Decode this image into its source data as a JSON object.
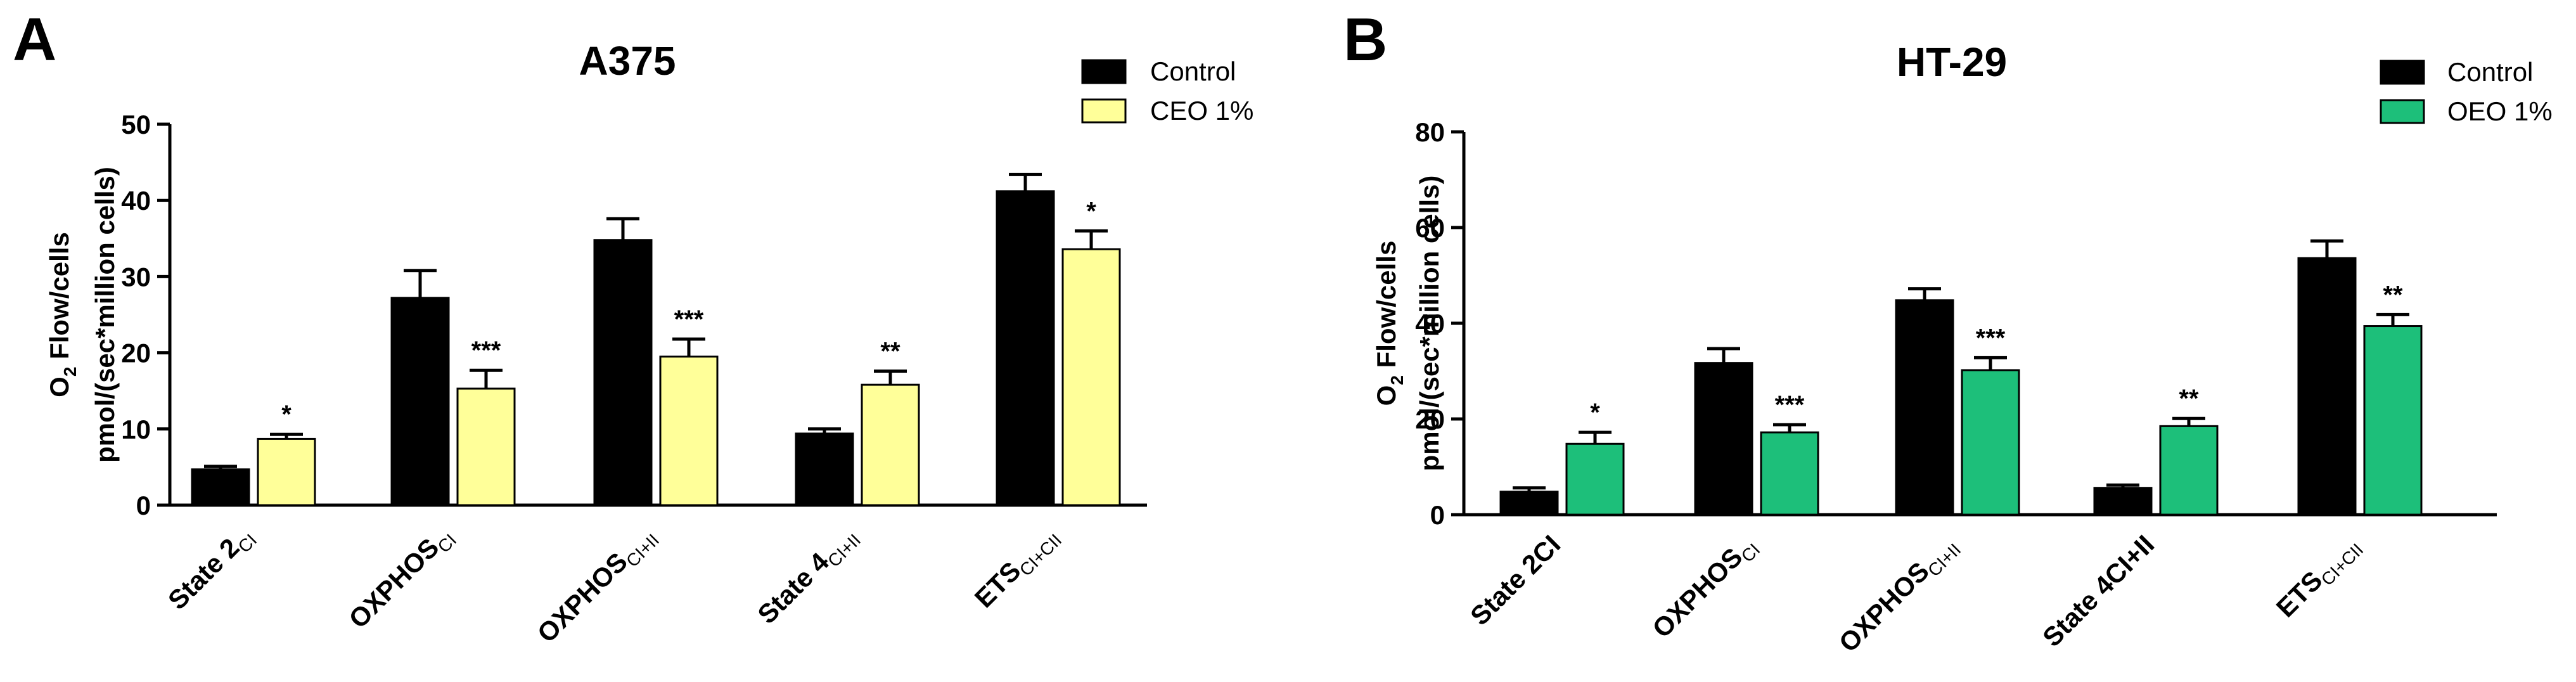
{
  "chart_data": [
    {
      "type": "bar",
      "panel_label": "A",
      "title": "A375",
      "ylabel_line1_main": "O",
      "ylabel_line1_sub": "2",
      "ylabel_line1_rest": " Flow/cells",
      "ylabel_line2": "pmol/(sec*million cells)",
      "ylim": [
        0,
        50
      ],
      "yticks": [
        0,
        10,
        20,
        30,
        40,
        50
      ],
      "categories": [
        {
          "main": "State 2",
          "sub": "CI"
        },
        {
          "main": "OXPHOS",
          "sub": "CI"
        },
        {
          "main": "OXPHOS",
          "sub": "CI+II"
        },
        {
          "main": "State 4",
          "sub": "CI+II"
        },
        {
          "main": "ETS",
          "sub": "CI+CII"
        }
      ],
      "series": [
        {
          "name": "Control",
          "color": "#000000",
          "values": [
            4.7,
            27.2,
            34.8,
            9.4,
            41.2
          ],
          "errors": [
            0.4,
            3.6,
            2.8,
            0.6,
            2.2
          ]
        },
        {
          "name": "CEO 1%",
          "color": "#ffff99",
          "values": [
            8.7,
            15.3,
            19.5,
            15.8,
            33.6
          ],
          "errors": [
            0.6,
            2.4,
            2.3,
            1.8,
            2.4
          ]
        }
      ],
      "significance": [
        "*",
        "***",
        "***",
        "**",
        "*"
      ]
    },
    {
      "type": "bar",
      "panel_label": "B",
      "title": "HT-29",
      "ylabel_line1_main": "O",
      "ylabel_line1_sub": "2",
      "ylabel_line1_rest": " Flow/cells",
      "ylabel_line2": "pmol/(sec*million cells)",
      "ylim": [
        0,
        80
      ],
      "yticks": [
        0,
        20,
        40,
        60,
        80
      ],
      "categories": [
        {
          "main": "State 2CI",
          "sub": ""
        },
        {
          "main": "OXPHOS",
          "sub": "CI"
        },
        {
          "main": "OXPHOS",
          "sub": "CI+II"
        },
        {
          "main": "State 4CI+II",
          "sub": ""
        },
        {
          "main": "ETS",
          "sub": "CI+CII"
        }
      ],
      "series": [
        {
          "name": "Control",
          "color": "#000000",
          "values": [
            4.8,
            31.7,
            44.8,
            5.6,
            53.6
          ],
          "errors": [
            0.8,
            3.0,
            2.4,
            0.6,
            3.6
          ]
        },
        {
          "name": "OEO 1%",
          "color": "#1dbf7a",
          "values": [
            14.8,
            17.2,
            30.2,
            18.5,
            39.4
          ],
          "errors": [
            2.4,
            1.6,
            2.6,
            1.6,
            2.4
          ]
        }
      ],
      "significance": [
        "*",
        "***",
        "***",
        "**",
        "**"
      ]
    }
  ]
}
